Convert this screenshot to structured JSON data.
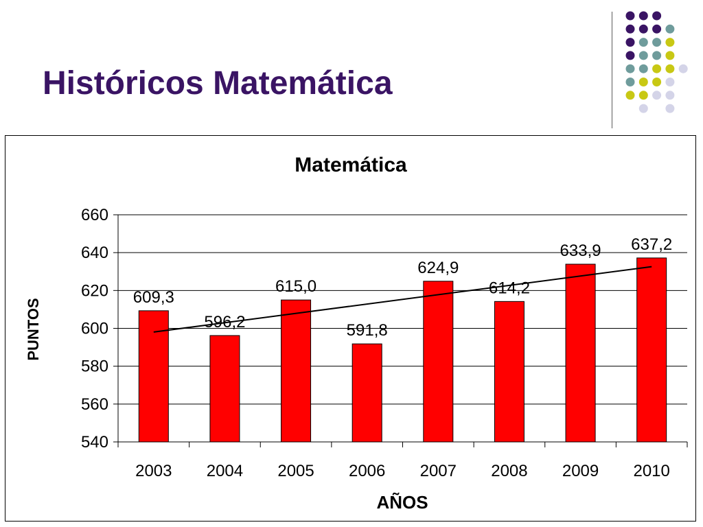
{
  "slide": {
    "title": "Históricos Matemática"
  },
  "decoration": {
    "dot_colors": {
      "purple": "#3a1464",
      "teal": "#6f9c9c",
      "yellow": "#c8c814",
      "lavender": "#d4d4e8"
    },
    "dot_rows": [
      [
        "purple",
        "purple",
        "purple"
      ],
      [
        "purple",
        "purple",
        "purple",
        "teal"
      ],
      [
        "purple",
        "teal",
        "teal",
        "yellow"
      ],
      [
        "purple",
        "teal",
        "teal",
        "yellow"
      ],
      [
        "teal",
        "teal",
        "yellow",
        "yellow",
        "lavender"
      ],
      [
        "teal",
        "yellow",
        "yellow",
        "lavender"
      ],
      [
        "yellow",
        "yellow",
        "lavender",
        "lavender"
      ],
      [
        "lavender",
        "lavender"
      ]
    ]
  },
  "chart_data": {
    "type": "bar",
    "title": "Matemática",
    "xlabel": "AÑOS",
    "ylabel": "PUNTOS",
    "categories": [
      "2003",
      "2004",
      "2005",
      "2006",
      "2007",
      "2008",
      "2009",
      "2010"
    ],
    "values": [
      609.3,
      596.2,
      615.0,
      591.8,
      624.9,
      614.2,
      633.9,
      637.2
    ],
    "data_labels": [
      "609,3",
      "596,2",
      "615,0",
      "591,8",
      "624,9",
      "614,2",
      "633,9",
      "637,2"
    ],
    "ylim": [
      540,
      660
    ],
    "yticks": [
      540,
      560,
      580,
      600,
      620,
      640,
      660
    ],
    "grid": true,
    "bar_color": "#ff0000",
    "trendline": {
      "type": "linear",
      "color": "#000000"
    }
  }
}
